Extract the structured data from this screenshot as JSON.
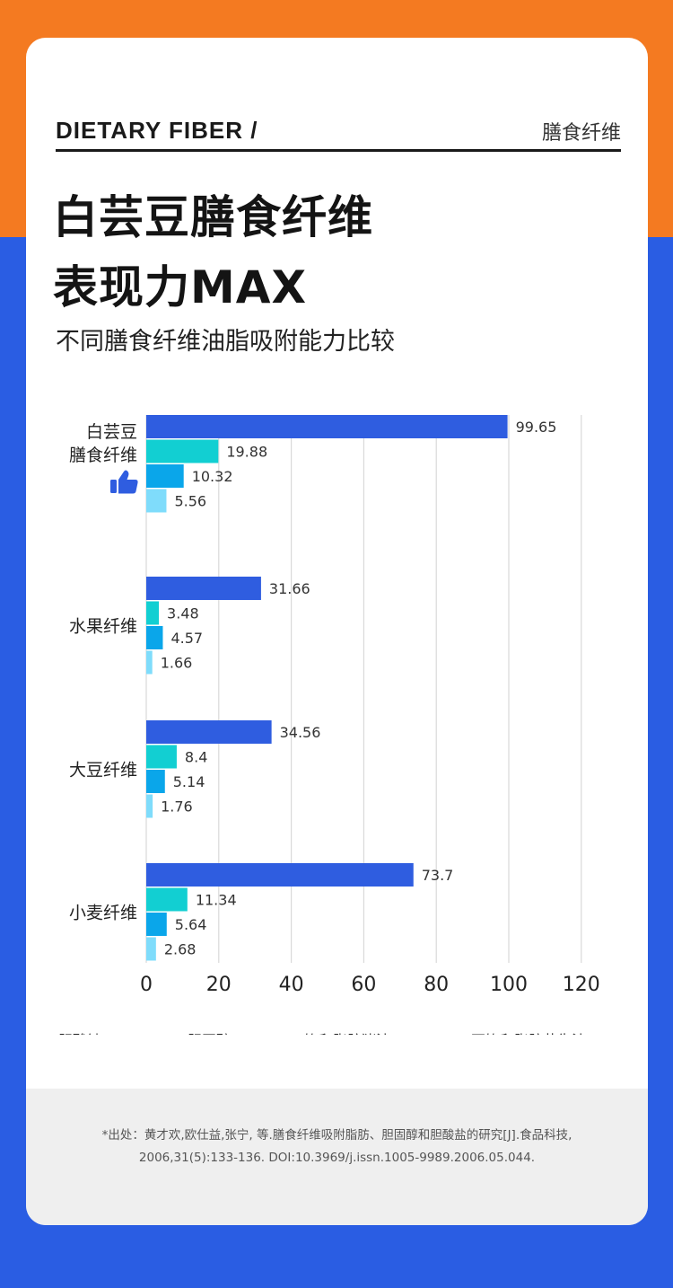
{
  "header": {
    "label_en": "DIETARY FIBER /",
    "label_cn": "膳食纤维"
  },
  "title": {
    "line1": "白芸豆膳食纤维",
    "line2": "表现力MAX"
  },
  "subtitle": "不同膳食纤维油脂吸附能力比较",
  "icons": {
    "highlight": "thumbs-up-icon"
  },
  "colors": {
    "top_band": "#f47a21",
    "background": "#2a5de3",
    "series": [
      "#2f5de0",
      "#12cfd2",
      "#0aa6ea",
      "#7fdcfb"
    ]
  },
  "chart_data": {
    "type": "bar",
    "orientation": "horizontal",
    "categories": [
      "白芸豆\n膳食纤维",
      "水果纤维",
      "大豆纤维",
      "小麦纤维"
    ],
    "series": [
      {
        "name": "胆酸钠(mg/g)",
        "values": [
          99.65,
          31.66,
          34.56,
          73.7
        ],
        "labels": [
          "99.65",
          "31.66",
          "34.56",
          "73.7"
        ]
      },
      {
        "name": "胆固醇(g/g)",
        "values": [
          19.88,
          3.48,
          8.4,
          11.34
        ],
        "labels": [
          "19.88",
          "3.48",
          "8.4",
          "11.34"
        ]
      },
      {
        "name": "饱和脂肪猪油(g/g)",
        "values": [
          10.32,
          4.57,
          5.14,
          5.64
        ],
        "labels": [
          "10.32",
          "4.57",
          "5.14",
          "5.64"
        ]
      },
      {
        "name": "不饱和脂肪花生油(g/g)",
        "values": [
          5.56,
          1.66,
          1.76,
          2.68
        ],
        "labels": [
          "5.56",
          "1.66",
          "1.76",
          "2.68"
        ]
      }
    ],
    "x_ticks": [
      "0",
      "20",
      "40",
      "60",
      "80",
      "100",
      "120"
    ],
    "xlim": [
      0,
      120
    ],
    "grid": true,
    "legend_position": "bottom"
  },
  "footnote": {
    "line1": "*出处：黄才欢,欧仕益,张宁, 等.膳食纤维吸附脂肪、胆固醇和胆酸盐的研究[J].食品科技,",
    "line2": "2006,31(5):133-136. DOI:10.3969/j.issn.1005-9989.2006.05.044."
  }
}
